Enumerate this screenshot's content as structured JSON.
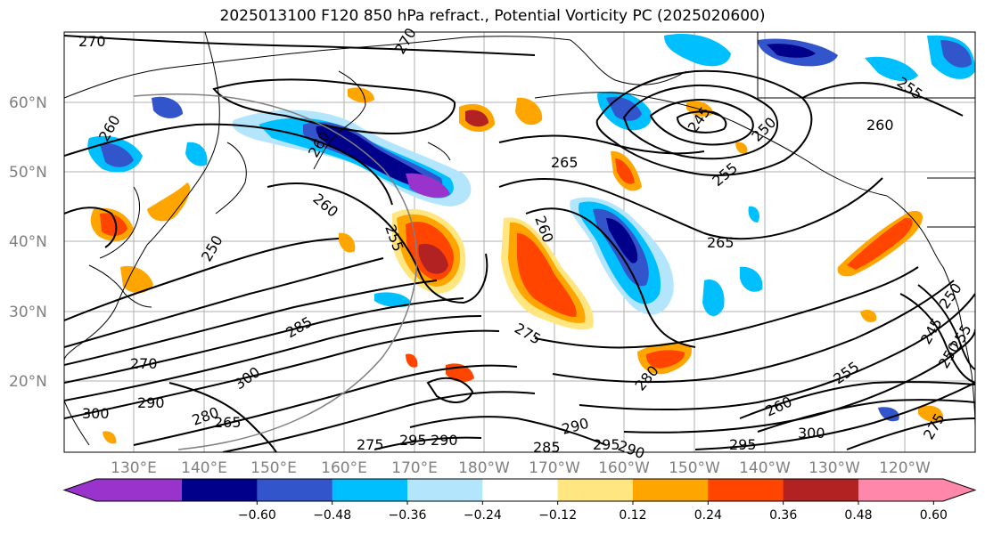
{
  "title": "2025013100 F120 850 hPa refract., Potential Vorticity PC (2025020600)",
  "lat_labels": [
    "60°N",
    "50°N",
    "40°N",
    "30°N",
    "20°N"
  ],
  "lon_labels": [
    "130°E",
    "140°E",
    "150°E",
    "160°E",
    "170°E",
    "180°W",
    "170°W",
    "160°W",
    "150°W",
    "140°W",
    "130°W",
    "120°W"
  ],
  "contour_labels": [
    "270",
    "270",
    "260",
    "265",
    "260",
    "255",
    "250",
    "245",
    "260",
    "265",
    "260",
    "255",
    "270",
    "290",
    "300",
    "300",
    "280",
    "285",
    "275",
    "290",
    "295",
    "290",
    "285",
    "295",
    "290",
    "275",
    "260",
    "255",
    "250",
    "245",
    "260",
    "265",
    "280",
    "250",
    "255",
    "250",
    "255",
    "300",
    "295",
    "275"
  ],
  "colorbar": {
    "colors": [
      "#9933cc",
      "#00008b",
      "#3355cc",
      "#00bfff",
      "#b3e5fc",
      "#ffffff",
      "#ffe680",
      "#ffa500",
      "#ff4500",
      "#b22222",
      "#ff88aa"
    ],
    "tick_labels": [
      "−0.60",
      "−0.48",
      "−0.36",
      "−0.24",
      "−0.12",
      "0.12",
      "0.24",
      "0.36",
      "0.48",
      "0.60"
    ]
  }
}
